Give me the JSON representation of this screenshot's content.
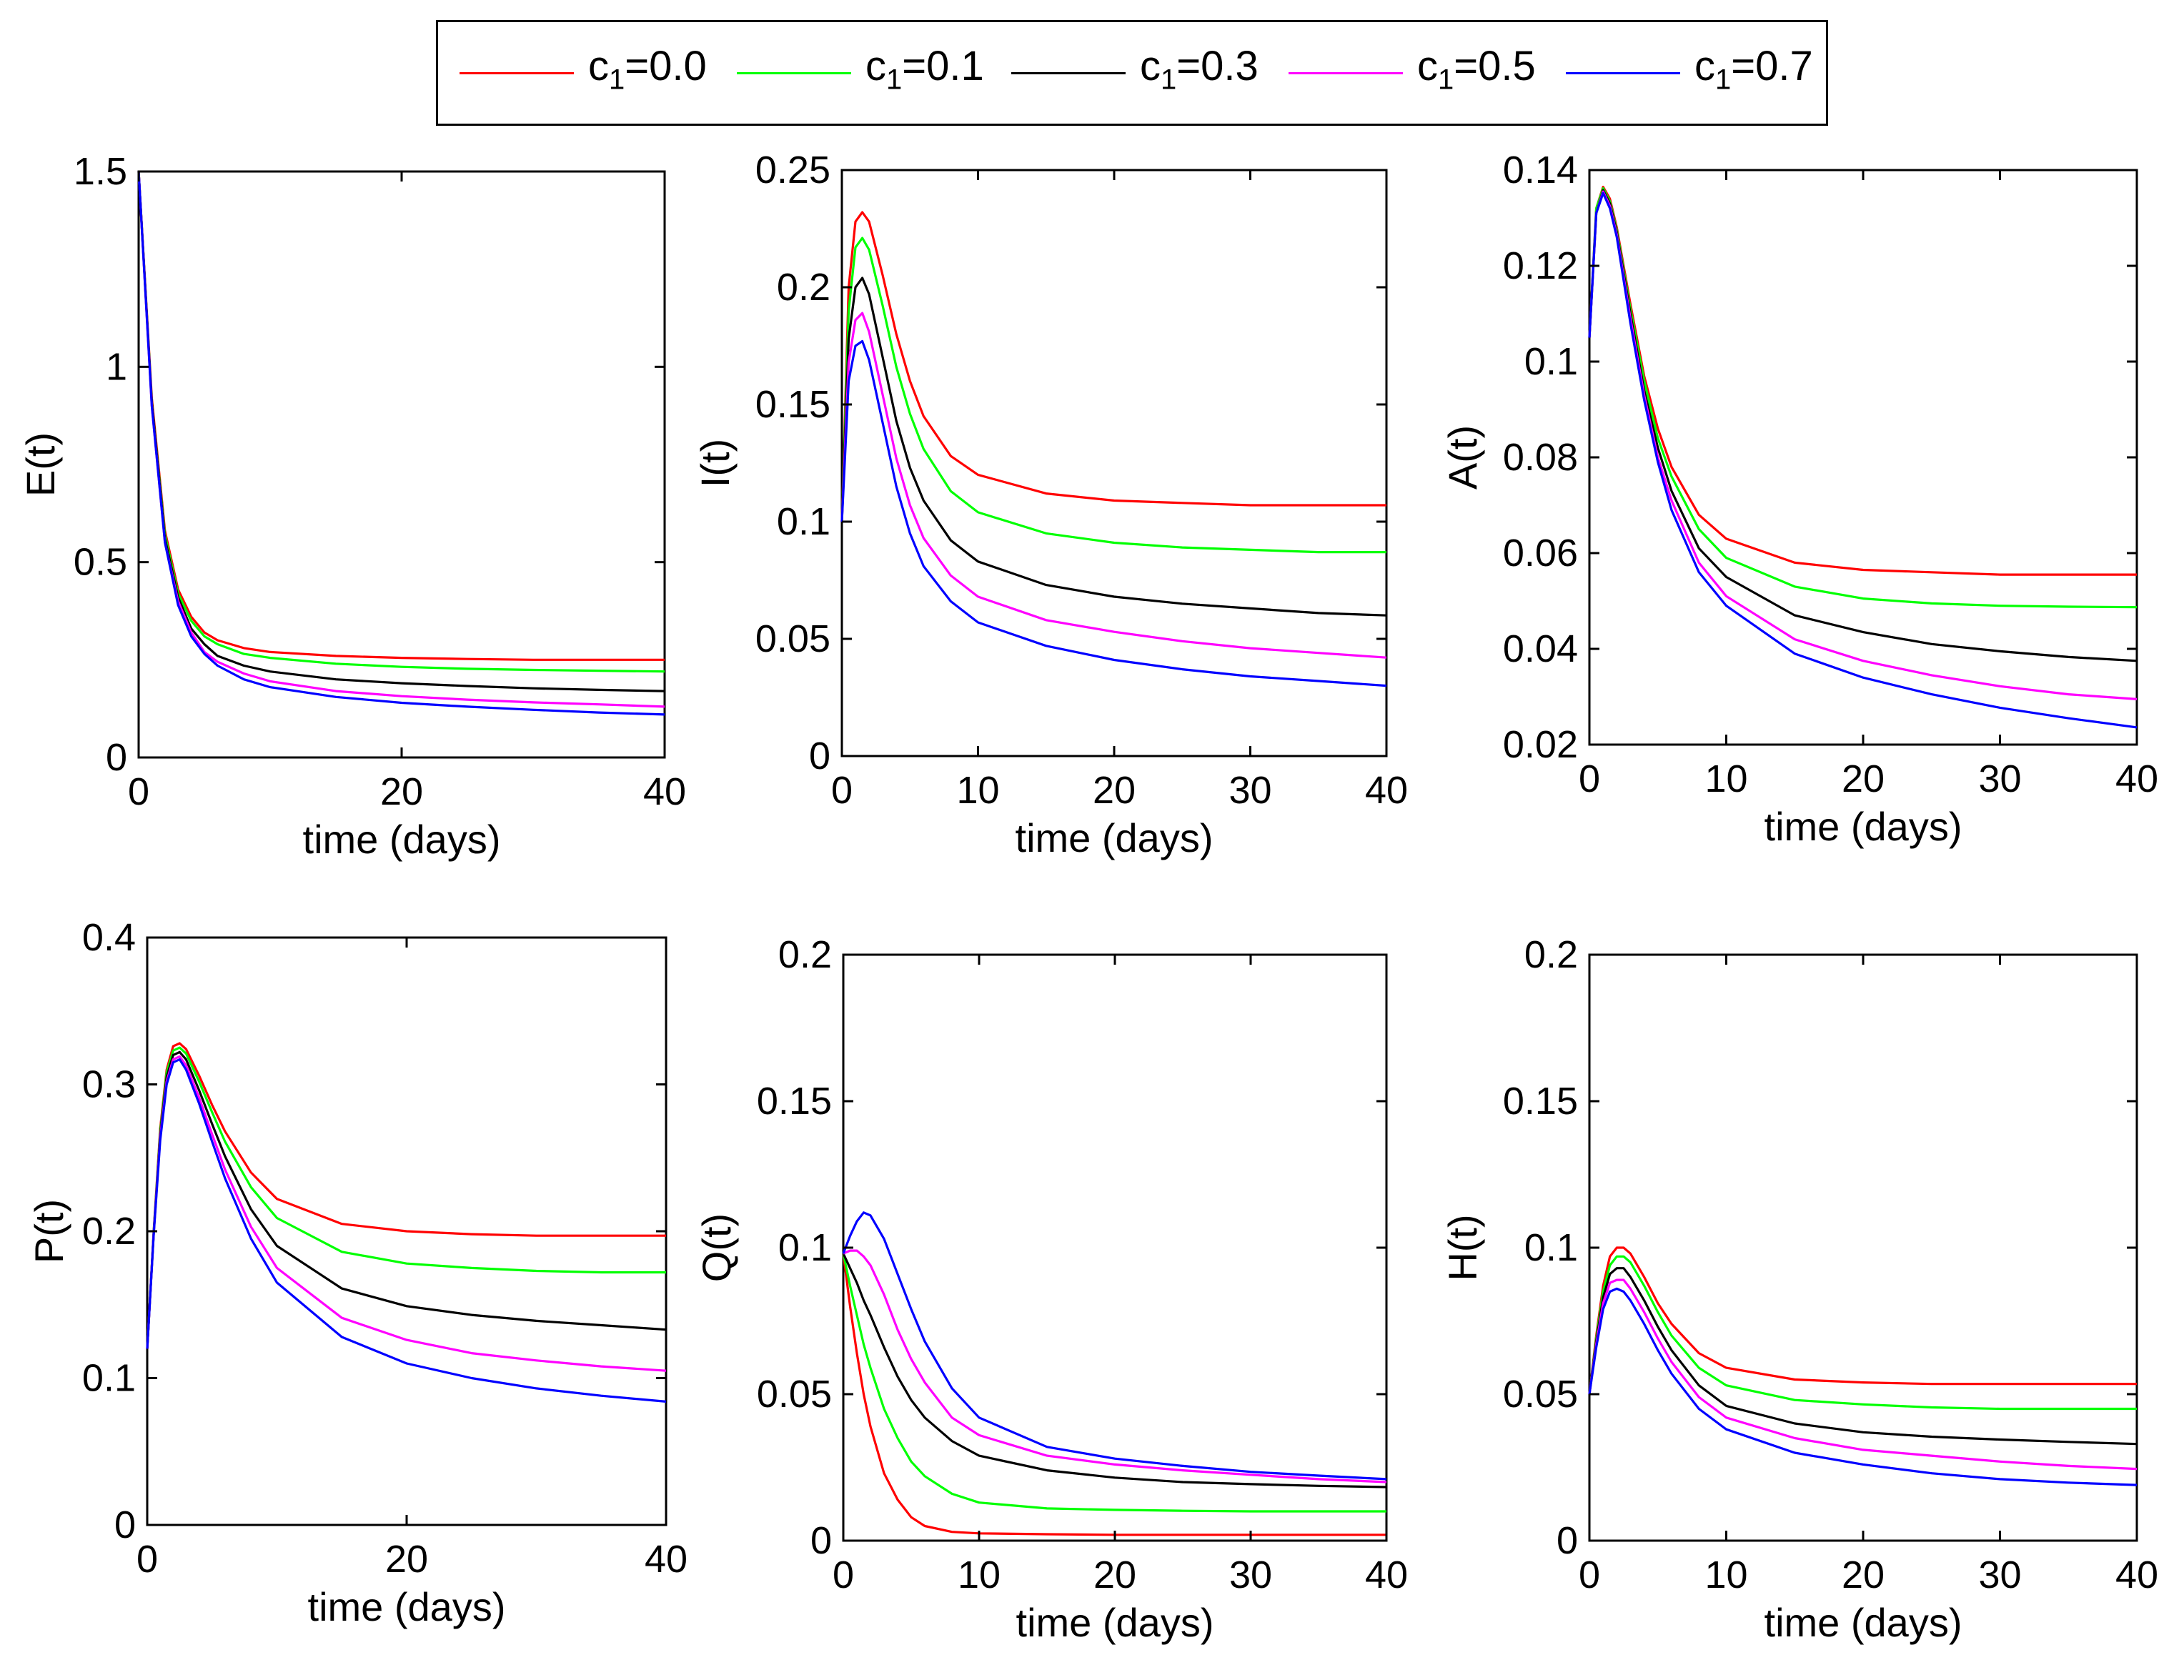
{
  "legend": [
    {
      "label": "c",
      "sub": "1",
      "suffix": "=0.0",
      "color": "#ff0000"
    },
    {
      "label": "c",
      "sub": "1",
      "suffix": "=0.1",
      "color": "#00ff00"
    },
    {
      "label": "c",
      "sub": "1",
      "suffix": "=0.3",
      "color": "#000000"
    },
    {
      "label": "c",
      "sub": "1",
      "suffix": "=0.5",
      "color": "#ff00ff"
    },
    {
      "label": "c",
      "sub": "1",
      "suffix": "=0.7",
      "color": "#0000ff"
    }
  ],
  "chart_data": [
    {
      "type": "line",
      "ylabel": "E(t)",
      "xlabel": "time (days)",
      "xlim": [
        0,
        40
      ],
      "ylim": [
        0,
        1.5
      ],
      "xticks": [
        0,
        20,
        40
      ],
      "yticks": [
        0,
        0.5,
        1,
        1.5
      ],
      "ytick_labels": [
        "0",
        "0.5",
        "1",
        "1.5"
      ],
      "x": [
        0,
        1,
        2,
        3,
        4,
        5,
        6,
        8,
        10,
        15,
        20,
        25,
        30,
        35,
        40
      ],
      "series": [
        {
          "color": "#ff0000",
          "values": [
            1.5,
            0.92,
            0.58,
            0.43,
            0.36,
            0.32,
            0.3,
            0.28,
            0.27,
            0.26,
            0.255,
            0.252,
            0.25,
            0.25,
            0.25
          ]
        },
        {
          "color": "#00ff00",
          "values": [
            1.5,
            0.91,
            0.57,
            0.42,
            0.35,
            0.31,
            0.29,
            0.265,
            0.255,
            0.24,
            0.232,
            0.227,
            0.224,
            0.222,
            0.22
          ]
        },
        {
          "color": "#000000",
          "values": [
            1.5,
            0.91,
            0.56,
            0.41,
            0.33,
            0.29,
            0.26,
            0.235,
            0.22,
            0.2,
            0.19,
            0.183,
            0.177,
            0.173,
            0.17
          ]
        },
        {
          "color": "#ff00ff",
          "values": [
            1.5,
            0.9,
            0.55,
            0.4,
            0.32,
            0.27,
            0.245,
            0.215,
            0.195,
            0.17,
            0.157,
            0.148,
            0.141,
            0.136,
            0.13
          ]
        },
        {
          "color": "#0000ff",
          "values": [
            1.5,
            0.9,
            0.55,
            0.39,
            0.31,
            0.265,
            0.235,
            0.2,
            0.18,
            0.155,
            0.14,
            0.13,
            0.122,
            0.115,
            0.11
          ]
        }
      ]
    },
    {
      "type": "line",
      "ylabel": "I(t)",
      "xlabel": "time (days)",
      "xlim": [
        0,
        40
      ],
      "ylim": [
        0,
        0.25
      ],
      "xticks": [
        0,
        10,
        20,
        30,
        40
      ],
      "yticks": [
        0,
        0.05,
        0.1,
        0.15,
        0.2,
        0.25
      ],
      "ytick_labels": [
        "0",
        "0.05",
        "0.1",
        "0.15",
        "0.2",
        "0.25"
      ],
      "x": [
        0,
        0.5,
        1,
        1.5,
        2,
        3,
        4,
        5,
        6,
        8,
        10,
        15,
        20,
        25,
        30,
        35,
        40
      ],
      "series": [
        {
          "color": "#ff0000",
          "values": [
            0.1,
            0.2,
            0.228,
            0.232,
            0.228,
            0.205,
            0.18,
            0.16,
            0.145,
            0.128,
            0.12,
            0.112,
            0.109,
            0.108,
            0.107,
            0.107,
            0.107
          ]
        },
        {
          "color": "#00ff00",
          "values": [
            0.1,
            0.19,
            0.217,
            0.221,
            0.216,
            0.192,
            0.166,
            0.146,
            0.131,
            0.113,
            0.104,
            0.095,
            0.091,
            0.089,
            0.088,
            0.087,
            0.087
          ]
        },
        {
          "color": "#000000",
          "values": [
            0.1,
            0.178,
            0.2,
            0.204,
            0.197,
            0.17,
            0.143,
            0.123,
            0.109,
            0.092,
            0.083,
            0.073,
            0.068,
            0.065,
            0.063,
            0.061,
            0.06
          ]
        },
        {
          "color": "#ff00ff",
          "values": [
            0.1,
            0.168,
            0.186,
            0.189,
            0.181,
            0.154,
            0.127,
            0.107,
            0.093,
            0.077,
            0.068,
            0.058,
            0.053,
            0.049,
            0.046,
            0.044,
            0.042
          ]
        },
        {
          "color": "#0000ff",
          "values": [
            0.1,
            0.16,
            0.175,
            0.177,
            0.169,
            0.142,
            0.115,
            0.095,
            0.081,
            0.066,
            0.057,
            0.047,
            0.041,
            0.037,
            0.034,
            0.032,
            0.03
          ]
        }
      ]
    },
    {
      "type": "line",
      "ylabel": "A(t)",
      "xlabel": "time (days)",
      "xlim": [
        0,
        40
      ],
      "ylim": [
        0.02,
        0.14
      ],
      "xticks": [
        0,
        10,
        20,
        30,
        40
      ],
      "yticks": [
        0.02,
        0.04,
        0.06,
        0.08,
        0.1,
        0.12,
        0.14
      ],
      "ytick_labels": [
        "0.02",
        "0.04",
        "0.06",
        "0.08",
        "0.1",
        "0.12",
        "0.14"
      ],
      "x": [
        0,
        0.5,
        1,
        1.5,
        2,
        3,
        4,
        5,
        6,
        8,
        10,
        15,
        20,
        25,
        30,
        35,
        40
      ],
      "series": [
        {
          "color": "#ff0000",
          "values": [
            0.105,
            0.132,
            0.1365,
            0.134,
            0.128,
            0.112,
            0.097,
            0.086,
            0.078,
            0.068,
            0.063,
            0.058,
            0.0565,
            0.056,
            0.0555,
            0.0555,
            0.0555
          ]
        },
        {
          "color": "#00ff00",
          "values": [
            0.105,
            0.132,
            0.1362,
            0.1335,
            0.1275,
            0.111,
            0.096,
            0.084,
            0.076,
            0.065,
            0.059,
            0.053,
            0.0505,
            0.0495,
            0.049,
            0.0488,
            0.0487
          ]
        },
        {
          "color": "#000000",
          "values": [
            0.105,
            0.131,
            0.1358,
            0.133,
            0.127,
            0.11,
            0.094,
            0.082,
            0.073,
            0.061,
            0.055,
            0.047,
            0.0435,
            0.041,
            0.0395,
            0.0383,
            0.0375
          ]
        },
        {
          "color": "#ff00ff",
          "values": [
            0.105,
            0.131,
            0.1355,
            0.1325,
            0.1265,
            0.109,
            0.093,
            0.08,
            0.071,
            0.058,
            0.051,
            0.042,
            0.0375,
            0.0345,
            0.0322,
            0.0305,
            0.0295
          ]
        },
        {
          "color": "#0000ff",
          "values": [
            0.105,
            0.131,
            0.1352,
            0.132,
            0.126,
            0.108,
            0.092,
            0.079,
            0.069,
            0.056,
            0.049,
            0.039,
            0.034,
            0.0305,
            0.0277,
            0.0255,
            0.0236
          ]
        }
      ]
    },
    {
      "type": "line",
      "ylabel": "P(t)",
      "xlabel": "time (days)",
      "xlim": [
        0,
        40
      ],
      "ylim": [
        0,
        0.4
      ],
      "xticks": [
        0,
        20,
        40
      ],
      "yticks": [
        0,
        0.1,
        0.2,
        0.3,
        0.4
      ],
      "ytick_labels": [
        "0",
        "0.1",
        "0.2",
        "0.3",
        "0.4"
      ],
      "x": [
        0,
        0.5,
        1,
        1.5,
        2,
        2.5,
        3,
        4,
        5,
        6,
        8,
        10,
        15,
        20,
        25,
        30,
        35,
        40
      ],
      "series": [
        {
          "color": "#ff0000",
          "values": [
            0.12,
            0.2,
            0.27,
            0.31,
            0.326,
            0.328,
            0.324,
            0.306,
            0.286,
            0.268,
            0.24,
            0.222,
            0.205,
            0.2,
            0.198,
            0.197,
            0.197,
            0.197
          ]
        },
        {
          "color": "#00ff00",
          "values": [
            0.12,
            0.2,
            0.268,
            0.308,
            0.323,
            0.325,
            0.321,
            0.302,
            0.281,
            0.261,
            0.23,
            0.209,
            0.186,
            0.178,
            0.175,
            0.173,
            0.172,
            0.172
          ]
        },
        {
          "color": "#000000",
          "values": [
            0.12,
            0.199,
            0.266,
            0.305,
            0.32,
            0.322,
            0.317,
            0.296,
            0.273,
            0.251,
            0.215,
            0.19,
            0.161,
            0.149,
            0.143,
            0.139,
            0.136,
            0.133
          ]
        },
        {
          "color": "#ff00ff",
          "values": [
            0.12,
            0.199,
            0.264,
            0.302,
            0.317,
            0.319,
            0.313,
            0.291,
            0.266,
            0.242,
            0.203,
            0.175,
            0.141,
            0.126,
            0.117,
            0.112,
            0.108,
            0.105
          ]
        },
        {
          "color": "#0000ff",
          "values": [
            0.12,
            0.198,
            0.262,
            0.3,
            0.315,
            0.317,
            0.31,
            0.287,
            0.261,
            0.236,
            0.195,
            0.165,
            0.128,
            0.11,
            0.1,
            0.093,
            0.088,
            0.084
          ]
        }
      ]
    },
    {
      "type": "line",
      "ylabel": "Q(t)",
      "xlabel": "time (days)",
      "xlim": [
        0,
        40
      ],
      "ylim": [
        0,
        0.2
      ],
      "xticks": [
        0,
        10,
        20,
        30,
        40
      ],
      "yticks": [
        0,
        0.05,
        0.1,
        0.15,
        0.2
      ],
      "ytick_labels": [
        "0",
        "0.05",
        "0.1",
        "0.15",
        "0.2"
      ],
      "x": [
        0,
        0.5,
        1,
        1.5,
        2,
        3,
        4,
        5,
        6,
        8,
        10,
        15,
        20,
        25,
        30,
        35,
        40
      ],
      "series": [
        {
          "color": "#ff0000",
          "values": [
            0.098,
            0.08,
            0.064,
            0.05,
            0.039,
            0.023,
            0.014,
            0.008,
            0.005,
            0.003,
            0.0025,
            0.0022,
            0.002,
            0.002,
            0.002,
            0.002,
            0.002
          ]
        },
        {
          "color": "#00ff00",
          "values": [
            0.098,
            0.087,
            0.077,
            0.067,
            0.059,
            0.045,
            0.035,
            0.027,
            0.022,
            0.016,
            0.013,
            0.011,
            0.0105,
            0.0102,
            0.01,
            0.01,
            0.01
          ]
        },
        {
          "color": "#000000",
          "values": [
            0.098,
            0.093,
            0.088,
            0.082,
            0.077,
            0.066,
            0.056,
            0.048,
            0.042,
            0.034,
            0.029,
            0.024,
            0.0215,
            0.02,
            0.0193,
            0.0187,
            0.0183
          ]
        },
        {
          "color": "#ff00ff",
          "values": [
            0.098,
            0.099,
            0.099,
            0.097,
            0.094,
            0.084,
            0.072,
            0.062,
            0.054,
            0.042,
            0.036,
            0.029,
            0.026,
            0.024,
            0.0225,
            0.021,
            0.02
          ]
        },
        {
          "color": "#0000ff",
          "values": [
            0.098,
            0.104,
            0.109,
            0.112,
            0.111,
            0.103,
            0.091,
            0.079,
            0.068,
            0.052,
            0.042,
            0.032,
            0.028,
            0.0255,
            0.0235,
            0.0222,
            0.021
          ]
        }
      ]
    },
    {
      "type": "line",
      "ylabel": "H(t)",
      "xlabel": "time (days)",
      "xlim": [
        0,
        40
      ],
      "ylim": [
        0,
        0.2
      ],
      "xticks": [
        0,
        10,
        20,
        30,
        40
      ],
      "yticks": [
        0,
        0.05,
        0.1,
        0.15,
        0.2
      ],
      "ytick_labels": [
        "0",
        "0.05",
        "0.1",
        "0.15",
        "0.2"
      ],
      "x": [
        0,
        0.5,
        1,
        1.5,
        2,
        2.5,
        3,
        4,
        5,
        6,
        8,
        10,
        15,
        20,
        25,
        30,
        35,
        40
      ],
      "series": [
        {
          "color": "#ff0000",
          "values": [
            0.05,
            0.07,
            0.087,
            0.097,
            0.1,
            0.1,
            0.098,
            0.09,
            0.081,
            0.074,
            0.064,
            0.059,
            0.055,
            0.054,
            0.0535,
            0.0535,
            0.0535,
            0.0535
          ]
        },
        {
          "color": "#00ff00",
          "values": [
            0.05,
            0.069,
            0.085,
            0.094,
            0.097,
            0.097,
            0.095,
            0.087,
            0.078,
            0.07,
            0.059,
            0.053,
            0.048,
            0.0465,
            0.0455,
            0.045,
            0.045,
            0.045
          ]
        },
        {
          "color": "#000000",
          "values": [
            0.05,
            0.068,
            0.083,
            0.091,
            0.093,
            0.093,
            0.09,
            0.082,
            0.073,
            0.065,
            0.053,
            0.046,
            0.04,
            0.037,
            0.0355,
            0.0345,
            0.0337,
            0.033
          ]
        },
        {
          "color": "#ff00ff",
          "values": [
            0.05,
            0.067,
            0.081,
            0.088,
            0.089,
            0.089,
            0.086,
            0.078,
            0.069,
            0.061,
            0.049,
            0.042,
            0.035,
            0.031,
            0.029,
            0.027,
            0.0255,
            0.0245
          ]
        },
        {
          "color": "#0000ff",
          "values": [
            0.05,
            0.066,
            0.079,
            0.085,
            0.086,
            0.085,
            0.082,
            0.074,
            0.065,
            0.057,
            0.045,
            0.038,
            0.03,
            0.026,
            0.023,
            0.021,
            0.0198,
            0.019
          ]
        }
      ]
    }
  ]
}
